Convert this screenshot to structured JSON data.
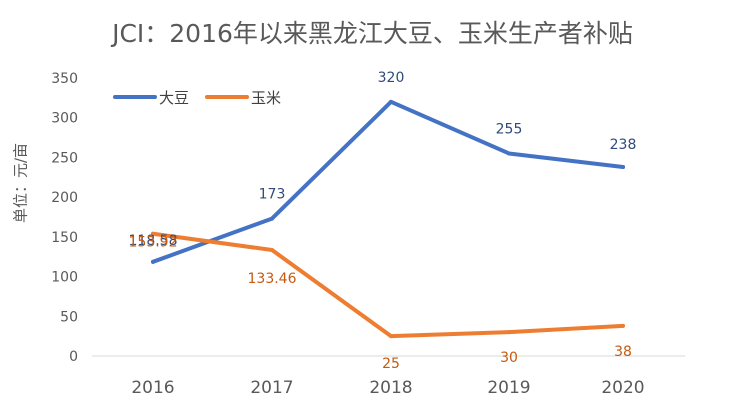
{
  "chart_data": {
    "type": "line",
    "title": "JCI：2016年以来黑龙江大豆、玉米生产者补贴",
    "ylabel": "单位：元/亩",
    "xlabel": "",
    "categories": [
      "2016",
      "2017",
      "2018",
      "2019",
      "2020"
    ],
    "ylim": [
      0,
      350
    ],
    "yticks": [
      0,
      50,
      100,
      150,
      200,
      250,
      300,
      350
    ],
    "grid": false,
    "legend_position": "top-left",
    "series": [
      {
        "name": "大豆",
        "color": "#4472C4",
        "values": [
          118.58,
          173,
          320,
          255,
          238
        ],
        "labels": [
          "118.58",
          "173",
          "320",
          "255",
          "238"
        ]
      },
      {
        "name": "玉米",
        "color": "#ED7D31",
        "values": [
          153.92,
          133.46,
          25,
          30,
          38
        ],
        "labels": [
          "153.92",
          "133.46",
          "25",
          "30",
          "38"
        ]
      }
    ]
  }
}
